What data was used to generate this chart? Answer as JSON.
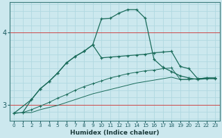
{
  "xlabel": "Humidex (Indice chaleur)",
  "background_color": "#cce8ee",
  "grid_color_regular": "#b0d8e0",
  "grid_color_red": "#cc4444",
  "line_color": "#1a6b5a",
  "x_ticks": [
    0,
    1,
    2,
    3,
    4,
    5,
    6,
    7,
    8,
    9,
    10,
    11,
    12,
    13,
    14,
    15,
    16,
    17,
    18,
    19,
    20,
    21,
    22,
    23
  ],
  "y_ticks": [
    3,
    4
  ],
  "ylim": [
    2.78,
    4.42
  ],
  "xlim": [
    -0.5,
    23.5
  ],
  "line1_x": [
    0,
    2,
    3,
    4,
    5,
    6,
    7,
    8,
    9,
    10,
    11,
    12,
    13,
    14,
    15,
    16,
    17,
    18,
    19,
    20,
    21,
    22,
    23
  ],
  "line1_y": [
    2.88,
    3.07,
    3.22,
    3.32,
    3.44,
    3.58,
    3.67,
    3.74,
    3.83,
    4.19,
    4.2,
    4.27,
    4.32,
    4.32,
    4.2,
    3.63,
    3.52,
    3.46,
    3.4,
    3.37,
    3.35,
    3.36,
    3.36
  ],
  "line2_x": [
    1,
    2,
    3,
    4,
    5,
    6,
    7,
    8,
    9,
    10,
    11,
    12,
    13,
    14,
    15,
    16,
    17,
    18,
    19,
    20,
    21,
    22,
    23
  ],
  "line2_y": [
    2.89,
    3.07,
    3.22,
    3.32,
    3.44,
    3.58,
    3.67,
    3.74,
    3.83,
    3.65,
    3.66,
    3.67,
    3.68,
    3.69,
    3.7,
    3.72,
    3.73,
    3.74,
    3.53,
    3.5,
    3.36,
    3.37,
    3.37
  ],
  "line3_x": [
    0,
    1,
    2,
    3,
    4,
    5,
    6,
    7,
    8,
    9,
    10,
    11,
    12,
    13,
    14,
    15,
    16,
    17,
    18,
    19,
    20,
    21,
    22,
    23
  ],
  "line3_y": [
    2.88,
    2.89,
    2.93,
    2.98,
    3.03,
    3.09,
    3.14,
    3.2,
    3.25,
    3.29,
    3.33,
    3.37,
    3.4,
    3.43,
    3.45,
    3.47,
    3.48,
    3.5,
    3.51,
    3.35,
    3.35,
    3.36,
    3.37,
    3.37
  ],
  "line4_x": [
    0,
    1,
    2,
    3,
    4,
    5,
    6,
    7,
    8,
    9,
    10,
    11,
    12,
    13,
    14,
    15,
    16,
    17,
    18,
    19,
    20,
    21,
    22,
    23
  ],
  "line4_y": [
    2.88,
    2.89,
    2.89,
    2.93,
    2.96,
    2.99,
    3.03,
    3.07,
    3.11,
    3.15,
    3.18,
    3.21,
    3.24,
    3.27,
    3.3,
    3.32,
    3.34,
    3.36,
    3.38,
    3.35,
    3.35,
    3.36,
    3.37,
    3.37
  ]
}
